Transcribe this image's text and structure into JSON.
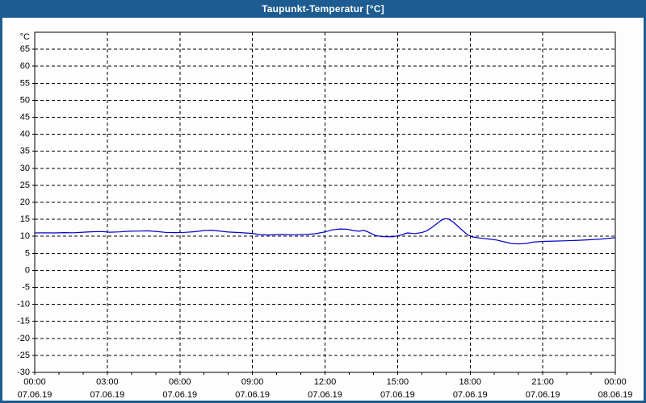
{
  "window": {
    "title": "Taupunkt-Temperatur [°C]"
  },
  "colors": {
    "titlebar": "#1d5c90",
    "frame": "#1d5c90",
    "background": "#fdfdfd",
    "grid": "#000000",
    "text": "#000000",
    "line": "#0000c8"
  },
  "chart_data": {
    "type": "line",
    "title": "Taupunkt-Temperatur [°C]",
    "unit_label": "°C",
    "xlabel": "",
    "ylabel": "°C",
    "x_unit": "hours",
    "xlim": [
      0,
      24
    ],
    "ylim": [
      -30,
      70
    ],
    "grid": "dashed",
    "legend": "none",
    "x_minor_step": 1,
    "y_ticks": [
      65,
      60,
      55,
      50,
      45,
      40,
      35,
      30,
      25,
      20,
      15,
      10,
      5,
      0,
      -5,
      -10,
      -15,
      -20,
      -25,
      -30
    ],
    "x_ticks": [
      {
        "t": 0,
        "time": "00:00",
        "date": "07.06.19"
      },
      {
        "t": 3,
        "time": "03:00",
        "date": "07.06.19"
      },
      {
        "t": 6,
        "time": "06:00",
        "date": "07.06.19"
      },
      {
        "t": 9,
        "time": "09:00",
        "date": "07.06.19"
      },
      {
        "t": 12,
        "time": "12:00",
        "date": "07.06.19"
      },
      {
        "t": 15,
        "time": "15:00",
        "date": "07.06.19"
      },
      {
        "t": 18,
        "time": "18:00",
        "date": "07.06.19"
      },
      {
        "t": 21,
        "time": "21:00",
        "date": "07.06.19"
      },
      {
        "t": 24,
        "time": "00:00",
        "date": "08.06.19"
      }
    ],
    "series": [
      {
        "name": "Taupunkt-Temperatur",
        "color": "#0000c8",
        "points": [
          [
            0,
            11.0
          ],
          [
            0.4,
            11.05
          ],
          [
            0.8,
            11.0
          ],
          [
            1.2,
            11.1
          ],
          [
            1.6,
            11.05
          ],
          [
            2.0,
            11.2
          ],
          [
            2.4,
            11.35
          ],
          [
            2.8,
            11.4
          ],
          [
            3.1,
            11.2
          ],
          [
            3.5,
            11.3
          ],
          [
            3.9,
            11.5
          ],
          [
            4.3,
            11.55
          ],
          [
            4.7,
            11.6
          ],
          [
            5.0,
            11.45
          ],
          [
            5.4,
            11.15
          ],
          [
            5.8,
            11.1
          ],
          [
            6.2,
            11.15
          ],
          [
            6.6,
            11.35
          ],
          [
            7.0,
            11.7
          ],
          [
            7.3,
            11.8
          ],
          [
            7.7,
            11.5
          ],
          [
            8.0,
            11.25
          ],
          [
            8.5,
            11.1
          ],
          [
            9.0,
            10.85
          ],
          [
            9.3,
            10.5
          ],
          [
            9.7,
            10.4
          ],
          [
            10.2,
            10.55
          ],
          [
            10.7,
            10.45
          ],
          [
            11.2,
            10.55
          ],
          [
            11.6,
            10.75
          ],
          [
            12.0,
            11.3
          ],
          [
            12.3,
            11.9
          ],
          [
            12.6,
            12.15
          ],
          [
            12.9,
            12.1
          ],
          [
            13.1,
            11.8
          ],
          [
            13.4,
            11.5
          ],
          [
            13.6,
            11.75
          ],
          [
            13.8,
            11.2
          ],
          [
            14.1,
            10.2
          ],
          [
            14.4,
            9.9
          ],
          [
            14.8,
            9.85
          ],
          [
            15.1,
            10.3
          ],
          [
            15.4,
            11.0
          ],
          [
            15.7,
            10.8
          ],
          [
            16.0,
            11.1
          ],
          [
            16.2,
            11.6
          ],
          [
            16.4,
            12.5
          ],
          [
            16.6,
            13.6
          ],
          [
            16.8,
            14.7
          ],
          [
            16.95,
            15.2
          ],
          [
            17.1,
            15.1
          ],
          [
            17.3,
            14.2
          ],
          [
            17.5,
            12.9
          ],
          [
            17.7,
            11.6
          ],
          [
            17.9,
            10.4
          ],
          [
            18.1,
            9.8
          ],
          [
            18.4,
            9.5
          ],
          [
            18.8,
            9.2
          ],
          [
            19.1,
            8.9
          ],
          [
            19.4,
            8.4
          ],
          [
            19.7,
            7.9
          ],
          [
            20.0,
            7.75
          ],
          [
            20.3,
            7.9
          ],
          [
            20.6,
            8.3
          ],
          [
            21.0,
            8.5
          ],
          [
            21.5,
            8.6
          ],
          [
            22.0,
            8.7
          ],
          [
            22.5,
            8.85
          ],
          [
            23.0,
            9.0
          ],
          [
            23.4,
            9.2
          ],
          [
            23.8,
            9.45
          ],
          [
            24.0,
            9.6
          ]
        ]
      }
    ]
  }
}
